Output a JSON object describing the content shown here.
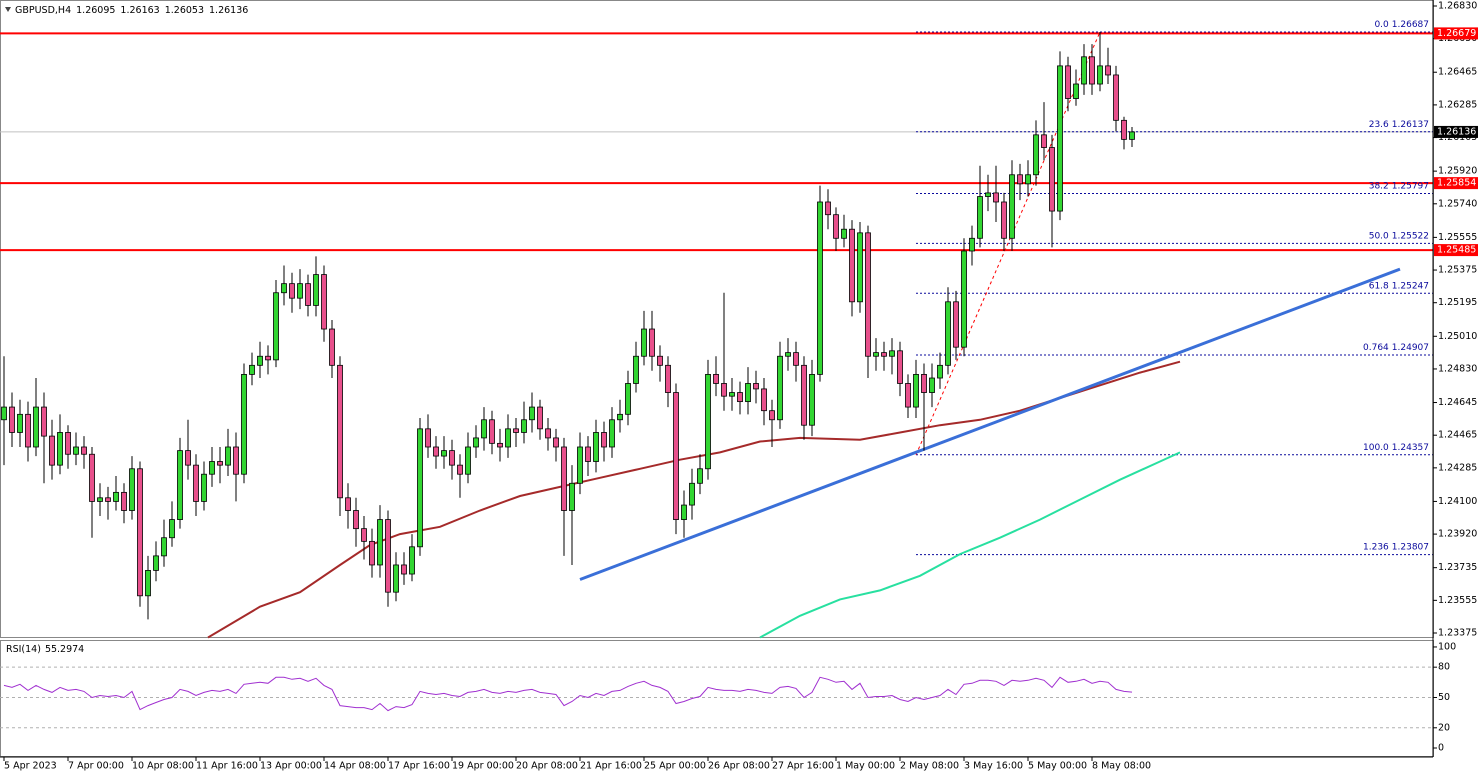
{
  "chart_data": [
    {
      "type": "candlestick",
      "title": "GBPUSD,H4",
      "categories": [
        "5 Apr 2023",
        null,
        null,
        null,
        null,
        null,
        null,
        null,
        "7 Apr 00:00",
        null,
        null,
        null,
        null,
        null,
        null,
        null,
        "10 Apr 08:00",
        null,
        null,
        null,
        null,
        null,
        null,
        null,
        "11 Apr 16:00",
        null,
        null,
        null,
        null,
        null,
        null,
        null,
        "13 Apr 00:00",
        null,
        null,
        null,
        null,
        null,
        null,
        null,
        "14 Apr 08:00",
        null,
        null,
        null,
        null,
        null,
        null,
        null,
        "17 Apr 16:00",
        null,
        null,
        null,
        null,
        null,
        null,
        null,
        "19 Apr 00:00",
        null,
        null,
        null,
        null,
        null,
        null,
        null,
        "20 Apr 08:00",
        null,
        null,
        null,
        null,
        null,
        null,
        null,
        "21 Apr 16:00",
        null,
        null,
        null,
        null,
        null,
        null,
        null,
        "25 Apr 00:00",
        null,
        null,
        null,
        null,
        null,
        null,
        null,
        "26 Apr 08:00",
        null,
        null,
        null,
        null,
        null,
        null,
        null,
        "27 Apr 16:00",
        null,
        null,
        null,
        null,
        null,
        null,
        null,
        "1 May 00:00",
        null,
        null,
        null,
        null,
        null,
        null,
        null,
        "2 May 08:00",
        null,
        null,
        null,
        null,
        null,
        null,
        null,
        "3 May 16:00",
        null,
        null,
        null,
        null,
        null,
        null,
        null,
        "5 May 00:00",
        null,
        null,
        null,
        null,
        null,
        null,
        null,
        "8 May 08:00",
        null,
        null,
        null,
        null,
        null
      ],
      "open": [
        1.2455,
        1.2462,
        1.2448,
        1.2458,
        1.244,
        1.2462,
        1.2446,
        1.243,
        1.2448,
        1.2436,
        1.244,
        1.2436,
        1.241,
        1.2412,
        1.241,
        1.2415,
        1.2405,
        1.2428,
        1.2358,
        1.2372,
        1.238,
        1.239,
        1.24,
        1.2438,
        1.243,
        1.241,
        1.2425,
        1.2432,
        1.243,
        1.244,
        1.2425,
        1.248,
        1.2485,
        1.249,
        1.2488,
        1.2525,
        1.253,
        1.2522,
        1.253,
        1.2518,
        1.2535,
        1.2505,
        1.2485,
        1.2412,
        1.2405,
        1.2395,
        1.2388,
        1.2375,
        1.24,
        1.236,
        1.2375,
        1.237,
        1.2385,
        1.245,
        1.244,
        1.2435,
        1.2438,
        1.243,
        1.2425,
        1.244,
        1.2445,
        1.2455,
        1.2442,
        1.244,
        1.245,
        1.2448,
        1.2455,
        1.2462,
        1.245,
        1.2445,
        1.244,
        1.2405,
        1.242,
        1.244,
        1.2432,
        1.2448,
        1.244,
        1.2455,
        1.2458,
        1.2475,
        1.249,
        1.2505,
        1.249,
        1.2485,
        1.247,
        1.24,
        1.2408,
        1.242,
        1.2428,
        1.248,
        1.2475,
        1.2468,
        1.247,
        1.2465,
        1.2475,
        1.2472,
        1.246,
        1.2455,
        1.249,
        1.2492,
        1.2485,
        1.2452,
        1.248,
        1.2575,
        1.2568,
        1.2555,
        1.256,
        1.252,
        1.2558,
        1.249,
        1.2492,
        1.249,
        1.2493,
        1.2475,
        1.2462,
        1.248,
        1.247,
        1.2478,
        1.2485,
        1.252,
        1.2495,
        1.2548,
        1.2555,
        1.2578,
        1.258,
        1.2575,
        1.2555,
        1.259,
        1.2585,
        1.259,
        1.2612,
        1.2605,
        1.257,
        1.265,
        1.2632,
        1.264,
        1.2655,
        1.264,
        1.265,
        1.2645,
        1.262,
        1.26095
      ],
      "high": [
        1.249,
        1.247,
        1.2466,
        1.2465,
        1.2478,
        1.247,
        1.2455,
        1.2458,
        1.2452,
        1.2448,
        1.2446,
        1.244,
        1.242,
        1.2418,
        1.2424,
        1.242,
        1.2435,
        1.2432,
        1.238,
        1.2388,
        1.24,
        1.241,
        1.2445,
        1.2455,
        1.2436,
        1.2432,
        1.244,
        1.244,
        1.245,
        1.2448,
        1.2486,
        1.2492,
        1.2498,
        1.2496,
        1.2532,
        1.254,
        1.2536,
        1.2538,
        1.2535,
        1.2545,
        1.254,
        1.251,
        1.249,
        1.242,
        1.2412,
        1.2402,
        1.2395,
        1.2408,
        1.2405,
        1.2382,
        1.2382,
        1.2392,
        1.2456,
        1.2458,
        1.2446,
        1.2446,
        1.2444,
        1.2436,
        1.2448,
        1.2452,
        1.2462,
        1.246,
        1.245,
        1.2458,
        1.2456,
        1.2465,
        1.247,
        1.2466,
        1.2456,
        1.245,
        1.2445,
        1.243,
        1.2448,
        1.2446,
        1.2455,
        1.2454,
        1.2462,
        1.2466,
        1.2482,
        1.2498,
        1.2515,
        1.2515,
        1.2496,
        1.249,
        1.2475,
        1.2416,
        1.2428,
        1.2436,
        1.2488,
        1.249,
        1.2525,
        1.2478,
        1.2476,
        1.2484,
        1.2482,
        1.2478,
        1.2466,
        1.2498,
        1.25,
        1.2498,
        1.249,
        1.2488,
        1.2584,
        1.2582,
        1.2572,
        1.2568,
        1.2565,
        1.2564,
        1.2562,
        1.25,
        1.2498,
        1.25,
        1.2498,
        1.248,
        1.2488,
        1.2486,
        1.2486,
        1.2492,
        1.2528,
        1.2526,
        1.2555,
        1.2562,
        1.2595,
        1.259,
        1.2595,
        1.258,
        1.2598,
        1.2596,
        1.2598,
        1.262,
        1.263,
        1.2612,
        1.2658,
        1.2655,
        1.2648,
        1.2662,
        1.2662,
        1.26687,
        1.266,
        1.265,
        1.2622,
        1.26163
      ],
      "low": [
        1.243,
        1.244,
        1.244,
        1.2432,
        1.2435,
        1.242,
        1.2422,
        1.2425,
        1.2428,
        1.243,
        1.2428,
        1.239,
        1.2402,
        1.24,
        1.2405,
        1.2398,
        1.24,
        1.2352,
        1.2345,
        1.2366,
        1.2374,
        1.2385,
        1.2395,
        1.2422,
        1.2402,
        1.2405,
        1.2418,
        1.242,
        1.2424,
        1.241,
        1.242,
        1.2474,
        1.2478,
        1.248,
        1.2484,
        1.2518,
        1.2514,
        1.2516,
        1.2512,
        1.2512,
        1.2498,
        1.2478,
        1.2402,
        1.2395,
        1.2385,
        1.2378,
        1.2368,
        1.2368,
        1.2352,
        1.2355,
        1.2364,
        1.2366,
        1.238,
        1.2434,
        1.2428,
        1.2428,
        1.2422,
        1.2412,
        1.242,
        1.2434,
        1.2438,
        1.2436,
        1.2432,
        1.2434,
        1.244,
        1.2442,
        1.2448,
        1.2444,
        1.2438,
        1.2432,
        1.238,
        1.2375,
        1.2414,
        1.2424,
        1.2426,
        1.2432,
        1.2434,
        1.2448,
        1.2452,
        1.247,
        1.2485,
        1.2482,
        1.2476,
        1.2462,
        1.2392,
        1.239,
        1.24,
        1.2414,
        1.2422,
        1.2468,
        1.246,
        1.246,
        1.2458,
        1.2458,
        1.2464,
        1.2452,
        1.244,
        1.245,
        1.2482,
        1.2476,
        1.2444,
        1.2446,
        1.2476,
        1.256,
        1.2548,
        1.255,
        1.2512,
        1.2514,
        1.2478,
        1.2482,
        1.2482,
        1.248,
        1.2468,
        1.2456,
        1.2456,
        1.2438,
        1.2462,
        1.2472,
        1.248,
        1.2488,
        1.249,
        1.254,
        1.255,
        1.257,
        1.2564,
        1.2548,
        1.2548,
        1.2576,
        1.2578,
        1.2584,
        1.2598,
        1.255,
        1.2565,
        1.2625,
        1.2628,
        1.2634,
        1.2634,
        1.2636,
        1.264,
        1.2614,
        1.2604,
        1.26053
      ],
      "close": [
        1.2462,
        1.2448,
        1.2458,
        1.244,
        1.2462,
        1.2446,
        1.243,
        1.2448,
        1.2436,
        1.244,
        1.2436,
        1.241,
        1.2412,
        1.241,
        1.2415,
        1.2405,
        1.2428,
        1.2358,
        1.2372,
        1.238,
        1.239,
        1.24,
        1.2438,
        1.243,
        1.241,
        1.2425,
        1.2432,
        1.243,
        1.244,
        1.2425,
        1.248,
        1.2485,
        1.249,
        1.2488,
        1.2525,
        1.253,
        1.2522,
        1.253,
        1.2518,
        1.2535,
        1.2505,
        1.2485,
        1.2412,
        1.2405,
        1.2395,
        1.2388,
        1.2375,
        1.24,
        1.236,
        1.2375,
        1.237,
        1.2385,
        1.245,
        1.244,
        1.2435,
        1.2438,
        1.243,
        1.2425,
        1.244,
        1.2445,
        1.2455,
        1.2442,
        1.244,
        1.245,
        1.2448,
        1.2455,
        1.2462,
        1.245,
        1.2445,
        1.244,
        1.2405,
        1.242,
        1.244,
        1.2432,
        1.2448,
        1.244,
        1.2455,
        1.2458,
        1.2475,
        1.249,
        1.2505,
        1.249,
        1.2485,
        1.247,
        1.24,
        1.2408,
        1.242,
        1.2428,
        1.248,
        1.2475,
        1.2468,
        1.247,
        1.2465,
        1.2475,
        1.2472,
        1.246,
        1.2455,
        1.249,
        1.2492,
        1.2485,
        1.2452,
        1.248,
        1.2575,
        1.2568,
        1.2555,
        1.256,
        1.252,
        1.2558,
        1.249,
        1.2492,
        1.249,
        1.2493,
        1.2475,
        1.2462,
        1.248,
        1.247,
        1.2478,
        1.2485,
        1.252,
        1.2495,
        1.2548,
        1.2555,
        1.2578,
        1.258,
        1.2575,
        1.2555,
        1.259,
        1.2585,
        1.259,
        1.2612,
        1.2605,
        1.257,
        1.265,
        1.2632,
        1.264,
        1.2655,
        1.264,
        1.265,
        1.2645,
        1.262,
        1.26095,
        1.26136
      ],
      "up_color": "#32d632",
      "down_color": "#e8508c",
      "ylim": [
        1.23353,
        1.26863
      ],
      "yticks": [
        {
          "value": 1.2683,
          "label": "1.26830"
        },
        {
          "value": 1.2665,
          "label": "1.26650"
        },
        1.26465,
        1.26285,
        1.26105,
        {
          "value": 1.2592,
          "label": "1.25920"
        },
        {
          "value": 1.2574,
          "label": "1.25740"
        },
        1.25555,
        1.25375,
        1.25195,
        {
          "value": 1.2501,
          "label": "1.25010"
        },
        {
          "value": 1.2483,
          "label": "1.24830"
        },
        1.24645,
        1.24465,
        1.24285,
        {
          "value": 1.241,
          "label": "1.24100"
        },
        {
          "value": 1.2392,
          "label": "1.23920"
        },
        1.23735,
        1.23555,
        1.23375
      ],
      "levels": [
        1.26679,
        1.25854,
        1.25485
      ],
      "level_color": "#ff0000",
      "fib_levels": [
        {
          "level": "0.0",
          "value": 1.26687
        },
        {
          "level": "23.6",
          "value": 1.26137
        },
        {
          "level": "38.2",
          "value": 1.25797
        },
        {
          "level": "50.0",
          "value": 1.25522
        },
        {
          "level": "61.8",
          "value": 1.25247
        },
        {
          "level": "0.764",
          "value": 1.24907
        },
        {
          "level": "100.0",
          "value": 1.24357
        },
        {
          "level": "1.236",
          "value": 1.23807
        }
      ],
      "fib_color": "#0a0a9c",
      "lines": [
        {
          "color": "#a52a2a",
          "x": [
            25.5,
            32,
            37,
            42,
            45.75,
            49.5,
            54.5,
            59.5,
            64.5,
            69.5,
            74.5,
            79.5,
            84.5,
            89.5,
            94.5,
            99.5,
            107,
            112,
            117,
            122,
            127,
            132,
            137,
            142,
            147
          ],
          "values": [
            1.2335,
            1.2352,
            1.236,
            1.2375,
            1.2386,
            1.2392,
            1.2396,
            1.2405,
            1.2413,
            1.2418,
            1.2423,
            1.2428,
            1.2433,
            1.2437,
            1.2443,
            1.2445,
            1.2444,
            1.2448,
            1.2452,
            1.2455,
            1.246,
            1.2467,
            1.2474,
            1.2481,
            1.2487
          ]
        },
        {
          "color": "#28e0a0",
          "x": [
            94.5,
            99.5,
            104.5,
            109.5,
            114.5,
            119.5,
            124.5,
            129.5,
            134.5,
            139.5,
            144.5,
            147
          ],
          "values": [
            1.2335,
            1.2347,
            1.2356,
            1.2361,
            1.2369,
            1.2381,
            1.239,
            1.24,
            1.2411,
            1.2422,
            1.2432,
            1.2437
          ]
        },
        {
          "color": "#3a6fd8",
          "x": [
            72,
            174.5
          ],
          "values": [
            1.2367,
            1.2538
          ]
        }
      ]
    },
    {
      "type": "line",
      "title": "RSI(14)",
      "color": "#a030d0",
      "values": [
        62,
        60,
        63,
        57,
        62,
        58,
        55,
        60,
        57,
        58,
        56,
        50,
        52,
        51,
        52,
        50,
        56,
        38,
        42,
        45,
        48,
        50,
        58,
        56,
        52,
        55,
        57,
        56,
        58,
        54,
        63,
        64,
        65,
        64,
        70,
        70,
        68,
        69,
        66,
        69,
        62,
        58,
        42,
        41,
        40,
        40,
        38,
        44,
        37,
        41,
        40,
        43,
        56,
        54,
        53,
        54,
        52,
        51,
        55,
        56,
        58,
        55,
        54,
        56,
        55,
        57,
        58,
        55,
        54,
        53,
        42,
        46,
        52,
        50,
        54,
        52,
        56,
        57,
        61,
        64,
        66,
        62,
        60,
        56,
        44,
        46,
        49,
        51,
        60,
        58,
        57,
        57,
        56,
        58,
        57,
        55,
        54,
        60,
        61,
        59,
        50,
        55,
        70,
        68,
        65,
        66,
        58,
        64,
        50,
        51,
        51,
        52,
        48,
        46,
        50,
        48,
        50,
        52,
        58,
        53,
        63,
        64,
        67,
        67,
        66,
        62,
        67,
        66,
        67,
        69,
        67,
        60,
        70,
        65,
        66,
        68,
        64,
        66,
        65,
        58,
        56,
        55.2974
      ],
      "ylim": [
        -8.9,
        105.9
      ],
      "yticks": [
        0,
        20,
        50,
        80,
        100
      ]
    }
  ]
}
